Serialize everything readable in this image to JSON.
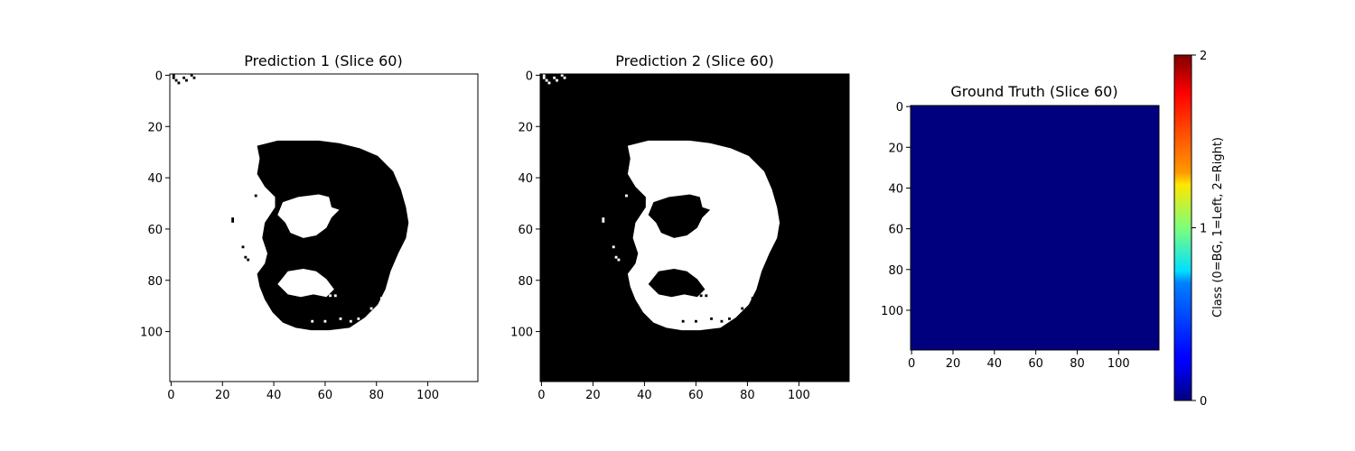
{
  "chart_data": [
    {
      "type": "heatmap",
      "title": "Prediction 1 (Slice 60)",
      "colormap": "gray_r",
      "image_size": [
        120,
        120
      ],
      "xlim": [
        0,
        120
      ],
      "ylim": [
        120,
        0
      ],
      "xticks": [
        "0",
        "20",
        "40",
        "60",
        "80",
        "100"
      ],
      "yticks": [
        "0",
        "20",
        "40",
        "60",
        "80",
        "100"
      ],
      "values": {
        "background": 0,
        "foreground": 1,
        "foreground_region": "irregular lung-shaped blob spanning roughly x 33-93, y 26-100 with interior holes"
      }
    },
    {
      "type": "heatmap",
      "title": "Prediction 2 (Slice 60)",
      "colormap": "gray",
      "image_size": [
        120,
        120
      ],
      "xlim": [
        0,
        120
      ],
      "ylim": [
        120,
        0
      ],
      "xticks": [
        "0",
        "20",
        "40",
        "60",
        "80",
        "100"
      ],
      "yticks": [
        "0",
        "20",
        "40",
        "60",
        "80",
        "100"
      ],
      "values": {
        "background": 0,
        "foreground": 1,
        "foreground_region": "inverse of Prediction 1 within the blob area"
      }
    },
    {
      "type": "heatmap",
      "title": "Ground Truth (Slice 60)",
      "colormap": "jet",
      "image_size": [
        120,
        120
      ],
      "xlim": [
        0,
        120
      ],
      "ylim": [
        120,
        0
      ],
      "xticks": [
        "0",
        "20",
        "40",
        "60",
        "80",
        "100"
      ],
      "yticks": [
        "0",
        "20",
        "40",
        "60",
        "80",
        "100"
      ],
      "values": {
        "all_pixels": 0
      },
      "colorbar": {
        "label": "Class (0=BG, 1=Left, 2=Right)",
        "range": [
          0,
          2
        ],
        "ticks": [
          "0",
          "1",
          "2"
        ]
      }
    }
  ],
  "colors": {
    "black": "#000000",
    "white": "#ffffff",
    "jet_zero": "#00007f"
  }
}
